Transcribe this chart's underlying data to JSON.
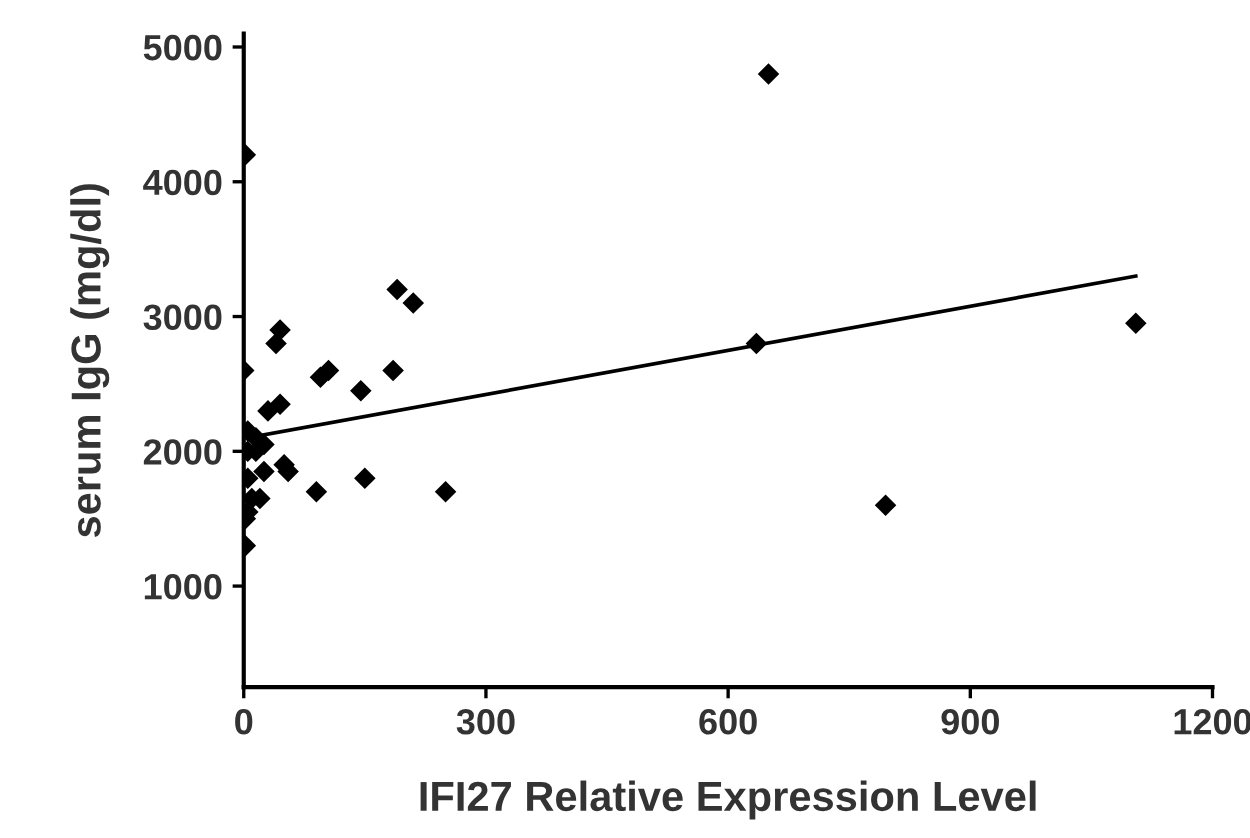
{
  "chart_data": {
    "type": "scatter",
    "xlabel": "IFI27 Relative Expression Level",
    "ylabel": "serum IgG (mg/dl)",
    "xlim": [
      0,
      1200
    ],
    "ylim": [
      250,
      5100
    ],
    "xticks": [
      0,
      300,
      600,
      900,
      1200
    ],
    "yticks": [
      1000,
      2000,
      3000,
      4000,
      5000
    ],
    "grid": false,
    "legend": false,
    "series": [
      {
        "marker": "diamond",
        "color": "#000000",
        "x": [
          2,
          0,
          190,
          210,
          45,
          40,
          105,
          95,
          185,
          145,
          45,
          30,
          5,
          15,
          25,
          15,
          5,
          25,
          50,
          55,
          90,
          150,
          250,
          5,
          10,
          20,
          5,
          2,
          2,
          650,
          635,
          1105,
          795
        ],
        "values": [
          4200,
          2600,
          3200,
          3100,
          2900,
          2800,
          2600,
          2550,
          2600,
          2450,
          2350,
          2300,
          2150,
          2100,
          2050,
          2000,
          2000,
          1850,
          1900,
          1850,
          1700,
          1800,
          1700,
          1800,
          1650,
          1650,
          1550,
          1500,
          1300,
          4800,
          2800,
          2950,
          1600
        ]
      },
      {
        "type": "line",
        "marker": "none",
        "line_style": "solid",
        "color": "#000000",
        "x": [
          5,
          1105
        ],
        "values": [
          2100,
          3300
        ]
      }
    ]
  }
}
